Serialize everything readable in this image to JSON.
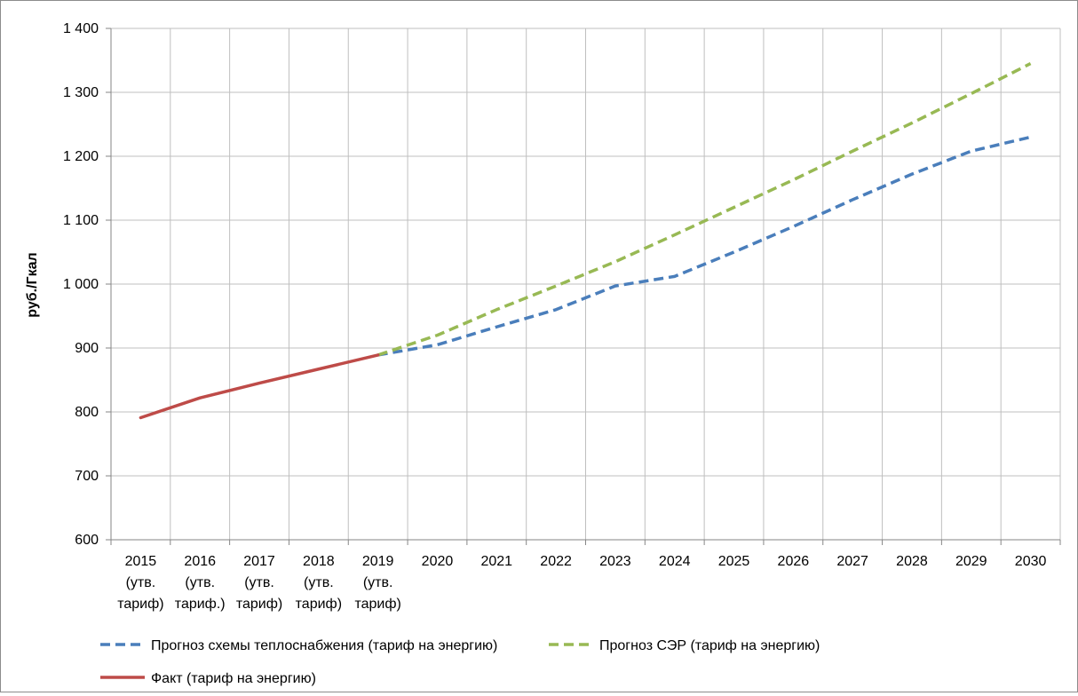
{
  "chart_data": {
    "type": "line",
    "ylabel": "руб./Гкал",
    "ylim": [
      600,
      1400
    ],
    "yticks": [
      600,
      700,
      800,
      900,
      1000,
      1100,
      1200,
      1300,
      1400
    ],
    "ytick_labels": [
      "600",
      "700",
      "800",
      "900",
      "1 000",
      "1 100",
      "1 200",
      "1 300",
      "1 400"
    ],
    "grid": true,
    "legend_position": "bottom",
    "categories": [
      {
        "lines": [
          "2015",
          "(утв.",
          "тариф)"
        ]
      },
      {
        "lines": [
          "2016",
          "(утв.",
          "тариф.)"
        ]
      },
      {
        "lines": [
          "2017",
          "(утв.",
          "тариф)"
        ]
      },
      {
        "lines": [
          "2018",
          "(утв.",
          "тариф)"
        ]
      },
      {
        "lines": [
          "2019",
          "(утв.",
          "тариф)"
        ]
      },
      {
        "lines": [
          "2020"
        ]
      },
      {
        "lines": [
          "2021"
        ]
      },
      {
        "lines": [
          "2022"
        ]
      },
      {
        "lines": [
          "2023"
        ]
      },
      {
        "lines": [
          "2024"
        ]
      },
      {
        "lines": [
          "2025"
        ]
      },
      {
        "lines": [
          "2026"
        ]
      },
      {
        "lines": [
          "2027"
        ]
      },
      {
        "lines": [
          "2028"
        ]
      },
      {
        "lines": [
          "2029"
        ]
      },
      {
        "lines": [
          "2030"
        ]
      }
    ],
    "series": [
      {
        "name": "Прогноз схемы теплоснабжения (тариф на энергию)",
        "color": "#4a7ebb",
        "dash": "dashed",
        "values": [
          null,
          null,
          null,
          null,
          889,
          905,
          933,
          960,
          997,
          1012,
          1050,
          1090,
          1132,
          1172,
          1208,
          1230
        ]
      },
      {
        "name": "Прогноз СЭР (тариф на энергию)",
        "color": "#98b954",
        "dash": "dashed",
        "values": [
          null,
          null,
          null,
          null,
          889,
          920,
          960,
          997,
          1035,
          1077,
          1120,
          1163,
          1208,
          1252,
          1298,
          1345
        ]
      },
      {
        "name": "Факт (тариф на энергию)",
        "color": "#be4b48",
        "dash": "solid",
        "values": [
          791,
          822,
          845,
          867,
          889,
          null,
          null,
          null,
          null,
          null,
          null,
          null,
          null,
          null,
          null,
          null
        ]
      }
    ]
  }
}
